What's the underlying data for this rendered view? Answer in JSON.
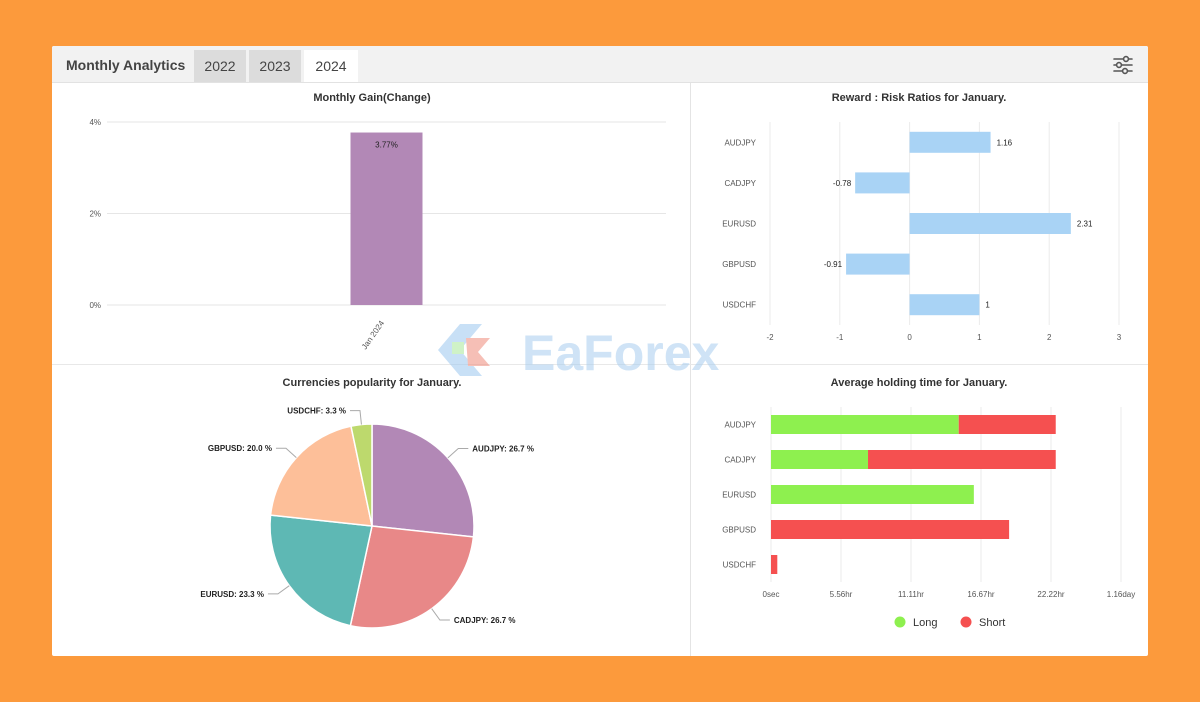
{
  "header": {
    "title": "Monthly Analytics",
    "tabs": [
      {
        "label": "2022",
        "active": false
      },
      {
        "label": "2023",
        "active": false
      },
      {
        "label": "2024",
        "active": true
      }
    ],
    "filter_icon": "sliders-icon"
  },
  "watermark": {
    "text": "EaForex"
  },
  "chart_data": [
    {
      "type": "bar",
      "title": "Monthly Gain(Change)",
      "categories": [
        "Jan 2024"
      ],
      "values": [
        3.77
      ],
      "value_labels": [
        "3.77%"
      ],
      "yticks": [
        "4%",
        "2%",
        "0%"
      ],
      "ylim": [
        0,
        4
      ],
      "color": "#b288b6",
      "grid": true
    },
    {
      "type": "bar",
      "orientation": "horizontal",
      "title": "Reward : Risk Ratios for January.",
      "categories": [
        "AUDJPY",
        "CADJPY",
        "EURUSD",
        "GBPUSD",
        "USDCHF"
      ],
      "values": [
        1.16,
        -0.78,
        2.31,
        -0.91,
        1
      ],
      "value_labels": [
        "1.16",
        "-0.78",
        "2.31",
        "-0.91",
        "1"
      ],
      "xticks": [
        "-2",
        "-1",
        "0",
        "1",
        "2",
        "3"
      ],
      "xlim": [
        -2,
        3
      ],
      "color": "#a9d3f5",
      "grid": true
    },
    {
      "type": "pie",
      "title": "Currencies popularity for January.",
      "slices": [
        {
          "name": "AUDJPY",
          "value": 26.7,
          "label": "AUDJPY: 26.7 %",
          "color": "#b288b6"
        },
        {
          "name": "CADJPY",
          "value": 26.7,
          "label": "CADJPY: 26.7 %",
          "color": "#e88888"
        },
        {
          "name": "EURUSD",
          "value": 23.3,
          "label": "EURUSD: 23.3 %",
          "color": "#5eb8b4"
        },
        {
          "name": "GBPUSD",
          "value": 20.0,
          "label": "GBPUSD: 20.0 %",
          "color": "#fdbf99"
        },
        {
          "name": "USDCHF",
          "value": 3.3,
          "label": "USDCHF: 3.3 %",
          "color": "#bdd96d"
        }
      ]
    },
    {
      "type": "bar",
      "orientation": "horizontal",
      "stacked": true,
      "title": "Average holding time for January.",
      "x_unit": "hours",
      "categories": [
        "AUDJPY",
        "CADJPY",
        "EURUSD",
        "GBPUSD",
        "USDCHF"
      ],
      "series": [
        {
          "name": "Long",
          "color": "#8ef04f",
          "values": [
            14.9,
            7.7,
            16.1,
            0,
            0
          ]
        },
        {
          "name": "Short",
          "color": "#f55050",
          "values": [
            7.7,
            14.9,
            0,
            18.9,
            0.5
          ]
        }
      ],
      "xticks": [
        "0sec",
        "5.56hr",
        "11.11hr",
        "16.67hr",
        "22.22hr",
        "1.16day"
      ],
      "xlim": [
        0,
        27.78
      ],
      "legend": "bottom",
      "grid": true
    }
  ]
}
